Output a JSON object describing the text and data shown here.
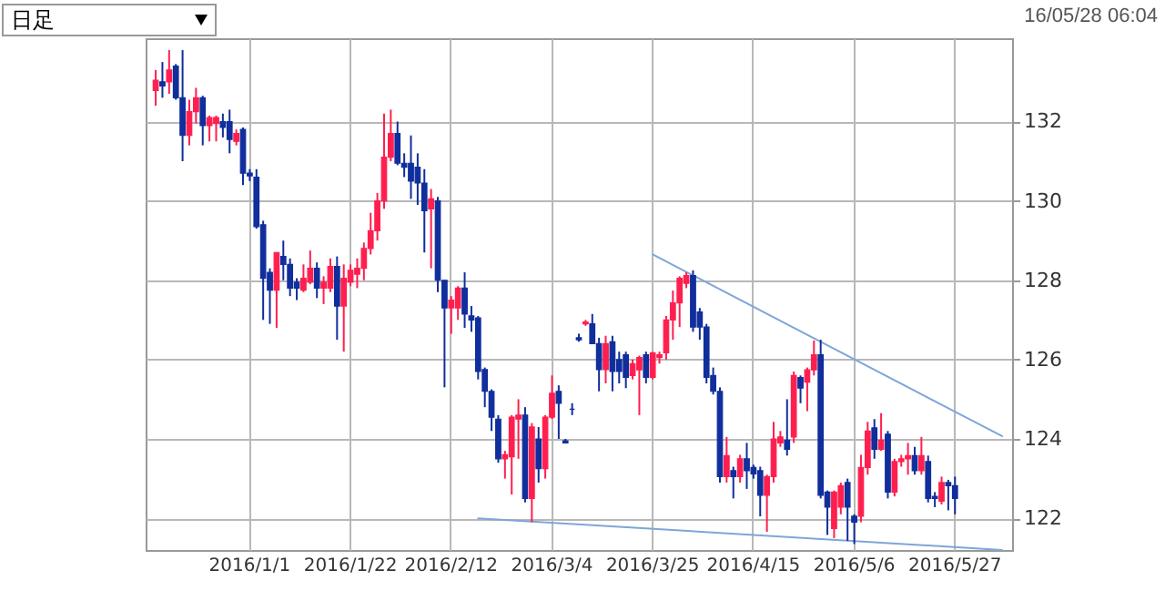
{
  "chart_data": {
    "type": "candlestick",
    "subtitle": "16/05/28 06:04",
    "annotations": [
      "日足"
    ],
    "categories": [
      null,
      null,
      null,
      null,
      null,
      null,
      null,
      null,
      null,
      null,
      null,
      null,
      null,
      null,
      "2016/1/1",
      null,
      null,
      null,
      null,
      null,
      null,
      null,
      null,
      null,
      null,
      null,
      null,
      null,
      null,
      "2016/1/22",
      null,
      null,
      null,
      null,
      null,
      null,
      null,
      null,
      null,
      null,
      null,
      null,
      null,
      null,
      "2016/2/12",
      null,
      null,
      null,
      null,
      null,
      null,
      null,
      null,
      null,
      null,
      null,
      null,
      null,
      null,
      "2016/3/4",
      null,
      null,
      null,
      null,
      null,
      null,
      null,
      null,
      null,
      null,
      null,
      null,
      null,
      null,
      "2016/3/25",
      null,
      null,
      null,
      null,
      null,
      null,
      null,
      null,
      null,
      null,
      null,
      null,
      null,
      null,
      "2016/4/15",
      null,
      null,
      null,
      null,
      null,
      null,
      null,
      null,
      null,
      null,
      null,
      null,
      null,
      null,
      "2016/5/6",
      null,
      null,
      null,
      null,
      null,
      null,
      null,
      null,
      null,
      null,
      null,
      null,
      null,
      null,
      "2016/5/27",
      null,
      null,
      null,
      null,
      null,
      null,
      null
    ],
    "ohlc": [
      [
        132.78,
        133.3,
        132.4,
        133.04
      ],
      [
        133.0,
        133.5,
        132.6,
        132.9
      ],
      [
        133.0,
        133.8,
        132.7,
        133.3
      ],
      [
        133.4,
        133.45,
        132.55,
        132.6
      ],
      [
        132.6,
        133.8,
        131.0,
        131.65
      ],
      [
        131.65,
        132.55,
        131.4,
        132.25
      ],
      [
        132.25,
        132.85,
        131.95,
        132.6
      ],
      [
        132.6,
        132.65,
        131.4,
        131.9
      ],
      [
        131.9,
        132.15,
        131.5,
        132.1
      ],
      [
        131.95,
        132.15,
        131.5,
        132.1
      ],
      [
        132.0,
        132.2,
        131.6,
        131.85
      ],
      [
        132.0,
        132.3,
        131.2,
        131.55
      ],
      [
        131.5,
        131.8,
        131.4,
        131.7
      ],
      [
        131.8,
        131.85,
        130.4,
        130.7
      ],
      [
        130.7,
        130.8,
        130.5,
        130.63
      ],
      [
        130.6,
        130.8,
        129.3,
        129.35
      ],
      [
        129.4,
        129.5,
        127.0,
        128.05
      ],
      [
        128.2,
        128.3,
        126.9,
        127.75
      ],
      [
        127.75,
        128.7,
        126.8,
        128.7
      ],
      [
        128.6,
        129.0,
        128.0,
        128.4
      ],
      [
        128.4,
        128.55,
        127.6,
        127.8
      ],
      [
        127.95,
        128.05,
        127.5,
        127.8
      ],
      [
        127.75,
        128.4,
        127.7,
        128.05
      ],
      [
        127.95,
        128.75,
        127.9,
        128.3
      ],
      [
        128.3,
        128.45,
        127.55,
        127.8
      ],
      [
        127.8,
        128.1,
        127.4,
        127.95
      ],
      [
        127.8,
        128.55,
        127.7,
        128.35
      ],
      [
        128.35,
        128.6,
        126.5,
        127.35
      ],
      [
        127.35,
        128.4,
        126.2,
        128.05
      ],
      [
        127.95,
        128.4,
        127.85,
        128.25
      ],
      [
        128.15,
        128.55,
        127.8,
        128.3
      ],
      [
        128.3,
        128.95,
        128.0,
        128.8
      ],
      [
        128.8,
        129.7,
        128.65,
        129.25
      ],
      [
        129.25,
        130.2,
        129.0,
        130.0
      ],
      [
        130.0,
        132.2,
        129.8,
        131.1
      ],
      [
        131.1,
        132.3,
        131.0,
        131.7
      ],
      [
        131.7,
        132.0,
        130.9,
        130.95
      ],
      [
        130.95,
        131.2,
        130.6,
        130.85
      ],
      [
        130.95,
        131.65,
        130.05,
        130.5
      ],
      [
        130.85,
        131.2,
        129.9,
        130.45
      ],
      [
        130.45,
        130.8,
        128.7,
        129.75
      ],
      [
        129.8,
        130.3,
        128.3,
        130.05
      ],
      [
        130.0,
        130.1,
        127.7,
        128.0
      ],
      [
        128.0,
        128.0,
        125.3,
        127.3
      ],
      [
        127.3,
        127.6,
        126.65,
        127.5
      ],
      [
        127.3,
        127.85,
        127.0,
        127.8
      ],
      [
        127.8,
        128.2,
        126.8,
        127.15
      ],
      [
        127.1,
        127.35,
        126.7,
        127.0
      ],
      [
        127.05,
        127.1,
        125.5,
        125.7
      ],
      [
        125.75,
        125.8,
        124.8,
        125.2
      ],
      [
        125.2,
        125.25,
        124.2,
        124.55
      ],
      [
        124.5,
        124.6,
        123.4,
        123.5
      ],
      [
        123.5,
        123.7,
        123.0,
        123.6
      ],
      [
        123.55,
        124.6,
        122.6,
        124.55
      ],
      [
        124.5,
        125.0,
        123.5,
        124.6
      ],
      [
        124.6,
        124.8,
        122.4,
        122.5
      ],
      [
        122.5,
        124.4,
        121.9,
        124.3
      ],
      [
        124.0,
        124.3,
        122.9,
        123.25
      ],
      [
        123.25,
        124.6,
        123.0,
        124.55
      ],
      [
        124.55,
        125.6,
        124.5,
        125.15
      ],
      [
        125.2,
        125.35,
        124.0,
        124.9
      ],
      [
        123.95,
        124.0,
        123.9,
        123.9
      ],
      [
        124.75,
        124.9,
        124.6,
        124.75
      ],
      [
        126.55,
        126.65,
        126.45,
        126.5
      ],
      [
        126.9,
        127.0,
        126.85,
        126.95
      ],
      [
        126.9,
        127.15,
        126.4,
        126.4
      ],
      [
        126.4,
        126.55,
        125.2,
        125.75
      ],
      [
        125.75,
        126.6,
        125.4,
        126.4
      ],
      [
        126.45,
        126.6,
        125.2,
        125.7
      ],
      [
        126.0,
        126.2,
        125.4,
        125.7
      ],
      [
        126.12,
        126.2,
        125.28,
        125.55
      ],
      [
        125.6,
        126.0,
        125.5,
        125.9
      ],
      [
        125.74,
        126.1,
        124.6,
        126.05
      ],
      [
        126.12,
        126.2,
        125.4,
        125.55
      ],
      [
        125.55,
        126.2,
        125.5,
        126.17
      ],
      [
        126.05,
        126.2,
        125.9,
        126.12
      ],
      [
        126.17,
        127.1,
        126.0,
        127.0
      ],
      [
        127.0,
        127.74,
        126.5,
        127.43
      ],
      [
        127.43,
        128.1,
        126.82,
        128.05
      ],
      [
        127.92,
        128.2,
        127.8,
        128.12
      ],
      [
        128.12,
        128.25,
        126.7,
        126.82
      ],
      [
        127.2,
        127.3,
        126.5,
        126.82
      ],
      [
        126.82,
        126.9,
        125.4,
        125.55
      ],
      [
        125.6,
        125.8,
        125.12,
        125.2
      ],
      [
        125.2,
        125.3,
        122.9,
        123.05
      ],
      [
        123.05,
        124.05,
        122.9,
        123.58
      ],
      [
        123.2,
        123.3,
        122.5,
        123.05
      ],
      [
        123.05,
        123.6,
        122.9,
        123.5
      ],
      [
        123.5,
        123.9,
        122.74,
        123.2
      ],
      [
        123.28,
        123.35,
        123.0,
        123.12
      ],
      [
        123.2,
        123.3,
        122.05,
        122.58
      ],
      [
        122.58,
        123.1,
        121.66,
        123.05
      ],
      [
        123.05,
        124.43,
        122.9,
        124.0
      ],
      [
        123.9,
        124.2,
        123.8,
        124.05
      ],
      [
        123.97,
        125.0,
        123.58,
        123.74
      ],
      [
        124.05,
        125.7,
        123.9,
        125.6
      ],
      [
        125.55,
        125.6,
        124.9,
        125.28
      ],
      [
        125.43,
        125.8,
        124.7,
        125.74
      ],
      [
        125.74,
        126.48,
        125.6,
        126.12
      ],
      [
        126.12,
        126.5,
        122.5,
        122.58
      ],
      [
        122.66,
        122.7,
        121.58,
        122.28
      ],
      [
        121.74,
        122.7,
        121.5,
        122.66
      ],
      [
        122.28,
        122.9,
        122.1,
        122.82
      ],
      [
        122.9,
        123.0,
        121.43,
        122.28
      ],
      [
        122.05,
        122.1,
        121.35,
        121.9
      ],
      [
        122.05,
        123.6,
        121.9,
        123.28
      ],
      [
        123.28,
        124.43,
        123.1,
        124.2
      ],
      [
        124.28,
        124.5,
        123.5,
        123.74
      ],
      [
        123.74,
        124.65,
        123.7,
        123.97
      ],
      [
        124.12,
        124.2,
        122.5,
        122.66
      ],
      [
        122.66,
        123.5,
        122.55,
        123.43
      ],
      [
        123.43,
        123.6,
        123.3,
        123.5
      ],
      [
        123.5,
        123.9,
        123.1,
        123.58
      ],
      [
        123.58,
        123.8,
        123.1,
        123.2
      ],
      [
        123.2,
        124.05,
        123.1,
        123.58
      ],
      [
        123.43,
        123.58,
        122.4,
        122.5
      ],
      [
        122.55,
        122.66,
        122.28,
        122.5
      ],
      [
        122.43,
        123.05,
        122.35,
        122.9
      ],
      [
        122.9,
        122.97,
        122.2,
        122.82
      ],
      [
        122.82,
        123.05,
        122.1,
        122.5
      ],
      null,
      null,
      null,
      null,
      null,
      null,
      null
    ],
    "colors": [
      "#ff1f4f",
      "#102e9c",
      "#ff1f4f",
      "#102e9c",
      "#102e9c",
      "#ff1f4f",
      "#ff1f4f",
      "#102e9c",
      "#ff1f4f",
      "#ff1f4f",
      "#102e9c",
      "#102e9c",
      "#ff1f4f",
      "#102e9c",
      "#102e9c",
      "#102e9c",
      "#102e9c",
      "#102e9c",
      "#ff1f4f",
      "#102e9c",
      "#102e9c",
      "#102e9c",
      "#ff1f4f",
      "#ff1f4f",
      "#102e9c",
      "#ff1f4f",
      "#ff1f4f",
      "#102e9c",
      "#ff1f4f",
      "#ff1f4f",
      "#ff1f4f",
      "#ff1f4f",
      "#ff1f4f",
      "#ff1f4f",
      "#ff1f4f",
      "#ff1f4f",
      "#102e9c",
      "#102e9c",
      "#102e9c",
      "#102e9c",
      "#102e9c",
      "#ff1f4f",
      "#102e9c",
      "#102e9c",
      "#ff1f4f",
      "#ff1f4f",
      "#102e9c",
      "#102e9c",
      "#102e9c",
      "#102e9c",
      "#102e9c",
      "#102e9c",
      "#ff1f4f",
      "#ff1f4f",
      "#ff1f4f",
      "#102e9c",
      "#ff1f4f",
      "#102e9c",
      "#ff1f4f",
      "#ff1f4f",
      "#102e9c",
      "#102e9c",
      "#102e9c",
      "#102e9c",
      "#ff1f4f",
      "#102e9c",
      "#102e9c",
      "#ff1f4f",
      "#102e9c",
      "#102e9c",
      "#102e9c",
      "#ff1f4f",
      "#ff1f4f",
      "#102e9c",
      "#ff1f4f",
      "#ff1f4f",
      "#ff1f4f",
      "#ff1f4f",
      "#ff1f4f",
      "#ff1f4f",
      "#102e9c",
      "#102e9c",
      "#102e9c",
      "#102e9c",
      "#102e9c",
      "#ff1f4f",
      "#102e9c",
      "#ff1f4f",
      "#102e9c",
      "#102e9c",
      "#102e9c",
      "#ff1f4f",
      "#ff1f4f",
      "#ff1f4f",
      "#102e9c",
      "#ff1f4f",
      "#102e9c",
      "#ff1f4f",
      "#ff1f4f",
      "#102e9c",
      "#102e9c",
      "#ff1f4f",
      "#ff1f4f",
      "#102e9c",
      "#102e9c",
      "#ff1f4f",
      "#ff1f4f",
      "#102e9c",
      "#ff1f4f",
      "#102e9c",
      "#ff1f4f",
      "#ff1f4f",
      "#ff1f4f",
      "#102e9c",
      "#ff1f4f",
      "#102e9c",
      "#102e9c",
      "#ff1f4f",
      "#102e9c",
      "#102e9c",
      null,
      null,
      null,
      null,
      null,
      null,
      null
    ],
    "series": [
      {
        "type": "line",
        "color": "#7ea6d8",
        "values": [
          null,
          null,
          null,
          null,
          null,
          null,
          null,
          null,
          null,
          null,
          null,
          null,
          null,
          null,
          null,
          null,
          null,
          null,
          null,
          null,
          null,
          null,
          null,
          null,
          null,
          null,
          null,
          null,
          null,
          null,
          null,
          null,
          null,
          null,
          null,
          null,
          null,
          null,
          null,
          null,
          null,
          null,
          null,
          null,
          null,
          null,
          null,
          null,
          null,
          null,
          null,
          null,
          null,
          null,
          null,
          null,
          null,
          null,
          null,
          null,
          null,
          null,
          null,
          null,
          null,
          null,
          null,
          null,
          null,
          null,
          null,
          null,
          null,
          null,
          128.65,
          null,
          null,
          null,
          null,
          null,
          null,
          null,
          null,
          null,
          null,
          null,
          null,
          null,
          null,
          null,
          null,
          null,
          null,
          null,
          null,
          null,
          null,
          null,
          null,
          null,
          null,
          null,
          null,
          null,
          null,
          null,
          null,
          null,
          null,
          null,
          null,
          null,
          null,
          null,
          null,
          null,
          null,
          null,
          null,
          null,
          null,
          null,
          null,
          null,
          null,
          null,
          124.07
        ]
      },
      {
        "type": "line",
        "color": "#7ea6d8",
        "values": [
          null,
          null,
          null,
          null,
          null,
          null,
          null,
          null,
          null,
          null,
          null,
          null,
          null,
          null,
          null,
          null,
          null,
          null,
          null,
          null,
          null,
          null,
          null,
          null,
          null,
          null,
          null,
          null,
          null,
          null,
          null,
          null,
          null,
          null,
          null,
          null,
          null,
          null,
          null,
          null,
          null,
          null,
          null,
          null,
          null,
          null,
          null,
          null,
          122.0,
          null,
          null,
          null,
          null,
          null,
          null,
          null,
          null,
          null,
          null,
          null,
          null,
          null,
          null,
          null,
          null,
          null,
          null,
          null,
          null,
          null,
          null,
          null,
          null,
          null,
          null,
          null,
          null,
          null,
          null,
          null,
          null,
          null,
          null,
          null,
          null,
          null,
          null,
          null,
          null,
          null,
          null,
          null,
          null,
          null,
          null,
          null,
          null,
          null,
          null,
          null,
          null,
          null,
          null,
          null,
          null,
          null,
          null,
          null,
          null,
          null,
          null,
          null,
          null,
          null,
          null,
          null,
          null,
          null,
          null,
          null,
          null,
          null,
          null,
          null,
          null,
          null,
          121.2
        ]
      }
    ],
    "ylim": [
      121.2,
      134.1
    ],
    "yticks": [
      122,
      124,
      126,
      128,
      130,
      132
    ],
    "grid": true
  }
}
